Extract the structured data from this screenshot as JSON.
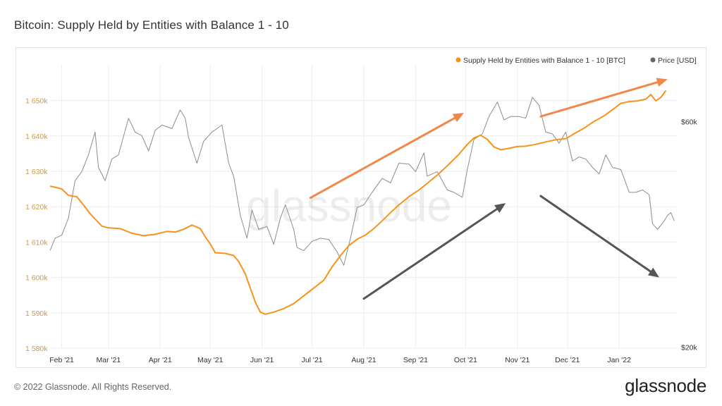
{
  "page": {
    "title": "Bitcoin: Supply Held by Entities with Balance 1 - 10",
    "copyright": "© 2022 Glassnode. All Rights Reserved.",
    "brand": "glassnode",
    "watermark": "glassnode"
  },
  "colors": {
    "supply": "#f7931a",
    "price": "#8c8c8c",
    "arrow_orange": "#f0884a",
    "arrow_gray": "#555555",
    "grid": "#eeeeee",
    "left_tick": "#d9953a",
    "right_tick": "#333333"
  },
  "chart_data": {
    "type": "line",
    "title": "Bitcoin: Supply Held by Entities with Balance 1 - 10",
    "x_ticks": [
      "Feb '21",
      "Mar '21",
      "Apr '21",
      "May '21",
      "Jun '21",
      "Jul '21",
      "Aug '21",
      "Sep '21",
      "Oct '21",
      "Nov '21",
      "Dec '21",
      "Jan '22"
    ],
    "y_left": {
      "ticks": [
        "1 580k",
        "1 590k",
        "1 600k",
        "1 610k",
        "1 620k",
        "1 630k",
        "1 640k",
        "1 650k"
      ],
      "range": [
        1580000,
        1660000
      ]
    },
    "y_right": {
      "ticks": [
        "$20k",
        "$60k"
      ],
      "scale": "log",
      "range": [
        18000,
        72000
      ]
    },
    "grid": true,
    "legend_position": "top-right",
    "legend": [
      {
        "label": "Supply Held by Entities with Balance 1 - 10 [BTC]",
        "color_key": "supply"
      },
      {
        "label": "Price [USD]",
        "color_key": "price"
      }
    ],
    "series": [
      {
        "name": "Supply Held by Entities with Balance 1 - 10 [BTC]",
        "axis": "left",
        "points": [
          [
            "2021-01-25",
            1625800
          ],
          [
            "2021-01-28",
            1625500
          ],
          [
            "2021-02-01",
            1625000
          ],
          [
            "2021-02-05",
            1623200
          ],
          [
            "2021-02-10",
            1622800
          ],
          [
            "2021-02-14",
            1620500
          ],
          [
            "2021-02-18",
            1618000
          ],
          [
            "2021-02-22",
            1616000
          ],
          [
            "2021-02-25",
            1614500
          ],
          [
            "2021-03-01",
            1614000
          ],
          [
            "2021-03-08",
            1613800
          ],
          [
            "2021-03-15",
            1612500
          ],
          [
            "2021-03-22",
            1611800
          ],
          [
            "2021-03-29",
            1612200
          ],
          [
            "2021-04-05",
            1613000
          ],
          [
            "2021-04-10",
            1612800
          ],
          [
            "2021-04-15",
            1613600
          ],
          [
            "2021-04-20",
            1614800
          ],
          [
            "2021-04-25",
            1613800
          ],
          [
            "2021-04-28",
            1611500
          ],
          [
            "2021-05-01",
            1609500
          ],
          [
            "2021-05-04",
            1607000
          ],
          [
            "2021-05-10",
            1606800
          ],
          [
            "2021-05-15",
            1606200
          ],
          [
            "2021-05-18",
            1604500
          ],
          [
            "2021-05-22",
            1601000
          ],
          [
            "2021-05-25",
            1597000
          ],
          [
            "2021-05-28",
            1593000
          ],
          [
            "2021-05-31",
            1590200
          ],
          [
            "2021-06-03",
            1589600
          ],
          [
            "2021-06-08",
            1590200
          ],
          [
            "2021-06-14",
            1591200
          ],
          [
            "2021-06-20",
            1592600
          ],
          [
            "2021-06-26",
            1594800
          ],
          [
            "2021-07-02",
            1597000
          ],
          [
            "2021-07-08",
            1599200
          ],
          [
            "2021-07-13",
            1603000
          ],
          [
            "2021-07-18",
            1606200
          ],
          [
            "2021-07-23",
            1609000
          ],
          [
            "2021-07-28",
            1610800
          ],
          [
            "2021-08-02",
            1612000
          ],
          [
            "2021-08-07",
            1613800
          ],
          [
            "2021-08-12",
            1616000
          ],
          [
            "2021-08-17",
            1618300
          ],
          [
            "2021-08-22",
            1620500
          ],
          [
            "2021-08-28",
            1622800
          ],
          [
            "2021-09-03",
            1624700
          ],
          [
            "2021-09-09",
            1627000
          ],
          [
            "2021-09-15",
            1629300
          ],
          [
            "2021-09-21",
            1632000
          ],
          [
            "2021-09-27",
            1634800
          ],
          [
            "2021-10-02",
            1637600
          ],
          [
            "2021-10-06",
            1639400
          ],
          [
            "2021-10-10",
            1640200
          ],
          [
            "2021-10-14",
            1639000
          ],
          [
            "2021-10-18",
            1636900
          ],
          [
            "2021-10-22",
            1636100
          ],
          [
            "2021-10-26",
            1636400
          ],
          [
            "2021-11-01",
            1637000
          ],
          [
            "2021-11-06",
            1637100
          ],
          [
            "2021-11-12",
            1637600
          ],
          [
            "2021-11-18",
            1638300
          ],
          [
            "2021-11-24",
            1638900
          ],
          [
            "2021-11-30",
            1639200
          ],
          [
            "2021-12-05",
            1640600
          ],
          [
            "2021-12-11",
            1642200
          ],
          [
            "2021-12-17",
            1644100
          ],
          [
            "2021-12-23",
            1645700
          ],
          [
            "2021-12-28",
            1647400
          ],
          [
            "2022-01-02",
            1649200
          ],
          [
            "2022-01-07",
            1649700
          ],
          [
            "2022-01-12",
            1649900
          ],
          [
            "2022-01-17",
            1650400
          ],
          [
            "2022-01-20",
            1651700
          ],
          [
            "2022-01-23",
            1649900
          ],
          [
            "2022-01-26",
            1650900
          ],
          [
            "2022-01-29",
            1652800
          ]
        ]
      },
      {
        "name": "Price [USD]",
        "axis": "right",
        "points": [
          [
            "2021-01-25",
            32000
          ],
          [
            "2021-01-28",
            34000
          ],
          [
            "2021-02-01",
            34500
          ],
          [
            "2021-02-05",
            37500
          ],
          [
            "2021-02-09",
            45000
          ],
          [
            "2021-02-13",
            47000
          ],
          [
            "2021-02-17",
            51000
          ],
          [
            "2021-02-21",
            57000
          ],
          [
            "2021-02-23",
            48000
          ],
          [
            "2021-02-27",
            45000
          ],
          [
            "2021-03-03",
            50000
          ],
          [
            "2021-03-07",
            51000
          ],
          [
            "2021-03-13",
            61000
          ],
          [
            "2021-03-17",
            57000
          ],
          [
            "2021-03-21",
            56000
          ],
          [
            "2021-03-25",
            52000
          ],
          [
            "2021-03-29",
            57500
          ],
          [
            "2021-04-02",
            59000
          ],
          [
            "2021-04-08",
            58000
          ],
          [
            "2021-04-13",
            63500
          ],
          [
            "2021-04-16",
            61000
          ],
          [
            "2021-04-18",
            55500
          ],
          [
            "2021-04-23",
            49000
          ],
          [
            "2021-04-27",
            54500
          ],
          [
            "2021-05-02",
            57000
          ],
          [
            "2021-05-08",
            59000
          ],
          [
            "2021-05-12",
            49000
          ],
          [
            "2021-05-15",
            46000
          ],
          [
            "2021-05-19",
            38000
          ],
          [
            "2021-05-23",
            34000
          ],
          [
            "2021-05-26",
            39000
          ],
          [
            "2021-05-30",
            35500
          ],
          [
            "2021-06-04",
            36000
          ],
          [
            "2021-06-08",
            33000
          ],
          [
            "2021-06-12",
            37500
          ],
          [
            "2021-06-15",
            40000
          ],
          [
            "2021-06-20",
            35500
          ],
          [
            "2021-06-22",
            32500
          ],
          [
            "2021-06-26",
            32000
          ],
          [
            "2021-07-01",
            33500
          ],
          [
            "2021-07-06",
            34000
          ],
          [
            "2021-07-11",
            33800
          ],
          [
            "2021-07-16",
            31800
          ],
          [
            "2021-07-20",
            29800
          ],
          [
            "2021-07-24",
            34000
          ],
          [
            "2021-07-28",
            39500
          ],
          [
            "2021-08-01",
            40000
          ],
          [
            "2021-08-06",
            42500
          ],
          [
            "2021-08-12",
            45500
          ],
          [
            "2021-08-17",
            44500
          ],
          [
            "2021-08-22",
            49000
          ],
          [
            "2021-08-28",
            48800
          ],
          [
            "2021-09-01",
            47000
          ],
          [
            "2021-09-06",
            51500
          ],
          [
            "2021-09-08",
            46000
          ],
          [
            "2021-09-14",
            47000
          ],
          [
            "2021-09-20",
            43000
          ],
          [
            "2021-09-24",
            42500
          ],
          [
            "2021-09-29",
            41500
          ],
          [
            "2021-10-02",
            47500
          ],
          [
            "2021-10-06",
            55000
          ],
          [
            "2021-10-11",
            56500
          ],
          [
            "2021-10-15",
            61500
          ],
          [
            "2021-10-20",
            66000
          ],
          [
            "2021-10-24",
            60500
          ],
          [
            "2021-10-28",
            61500
          ],
          [
            "2021-11-02",
            61500
          ],
          [
            "2021-11-06",
            61000
          ],
          [
            "2021-11-10",
            67500
          ],
          [
            "2021-11-14",
            65000
          ],
          [
            "2021-11-18",
            57000
          ],
          [
            "2021-11-22",
            56500
          ],
          [
            "2021-11-26",
            54000
          ],
          [
            "2021-11-30",
            57000
          ],
          [
            "2021-12-04",
            49500
          ],
          [
            "2021-12-08",
            50500
          ],
          [
            "2021-12-12",
            50000
          ],
          [
            "2021-12-16",
            48000
          ],
          [
            "2021-12-20",
            46500
          ],
          [
            "2021-12-24",
            51000
          ],
          [
            "2021-12-28",
            48000
          ],
          [
            "2022-01-02",
            47500
          ],
          [
            "2022-01-07",
            42500
          ],
          [
            "2022-01-11",
            42500
          ],
          [
            "2022-01-15",
            43000
          ],
          [
            "2022-01-19",
            42000
          ],
          [
            "2022-01-21",
            36500
          ],
          [
            "2022-01-24",
            35500
          ],
          [
            "2022-01-28",
            37000
          ],
          [
            "2022-01-30",
            38000
          ],
          [
            "2022-02-01",
            38500
          ],
          [
            "2022-02-03",
            37000
          ]
        ]
      }
    ],
    "annotations": [
      {
        "kind": "arrow",
        "color_key": "arrow_orange",
        "from": [
          "2021-06-30",
          1622500
        ],
        "to": [
          "2021-09-30",
          1646500
        ]
      },
      {
        "kind": "arrow",
        "color_key": "arrow_orange",
        "from": [
          "2021-11-15",
          1645500
        ],
        "to": [
          "2022-01-30",
          1656000
        ]
      },
      {
        "kind": "arrow",
        "color_key": "arrow_gray",
        "from": [
          "2021-08-01",
          1594000
        ],
        "to": [
          "2021-10-25",
          1621000
        ]
      },
      {
        "kind": "arrow",
        "color_key": "arrow_gray",
        "from": [
          "2021-11-15",
          1623000
        ],
        "to": [
          "2022-01-25",
          1600000
        ]
      }
    ]
  }
}
